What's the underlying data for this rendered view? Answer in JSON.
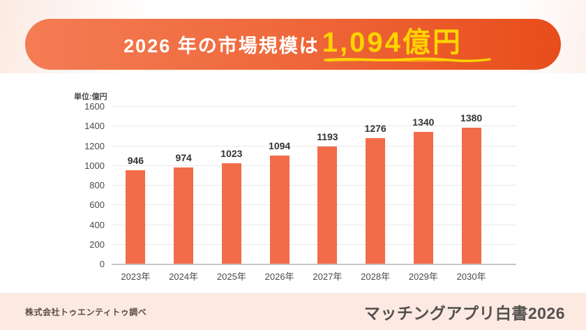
{
  "banner": {
    "prefix": "2026 年の市場規模は",
    "highlight": "1,094億円"
  },
  "chart_data": {
    "type": "bar",
    "title": "2026 年の市場規模は 1,094億円",
    "unit_label": "単位:億円",
    "categories": [
      "2023年",
      "2024年",
      "2025年",
      "2026年",
      "2027年",
      "2028年",
      "2029年",
      "2030年"
    ],
    "values": [
      946,
      974,
      1023,
      1094,
      1193,
      1276,
      1340,
      1380
    ],
    "xlabel": "",
    "ylabel": "単位:億円",
    "ylim": [
      0,
      1600
    ],
    "yticks": [
      0,
      200,
      400,
      600,
      800,
      1000,
      1200,
      1400,
      1600
    ],
    "grid": true,
    "value_labels": true,
    "legend": "none",
    "bar_color": "#f26c4a"
  },
  "footer": {
    "source": "株式会社トゥエンティトゥ調べ",
    "title": "マッチングアプリ白書2026"
  },
  "colors": {
    "banner_gradient_left": "#f47c54",
    "banner_gradient_right": "#e84d1b",
    "banner_text": "#ffffff",
    "banner_highlight": "#ffd400",
    "bar": "#f26c4a",
    "footer_background": "#fbe9e2",
    "footer_text": "#55504d",
    "gridline": "#e9e9e9",
    "axis_line": "#c6c6c6",
    "page_background": "#ffffff"
  }
}
